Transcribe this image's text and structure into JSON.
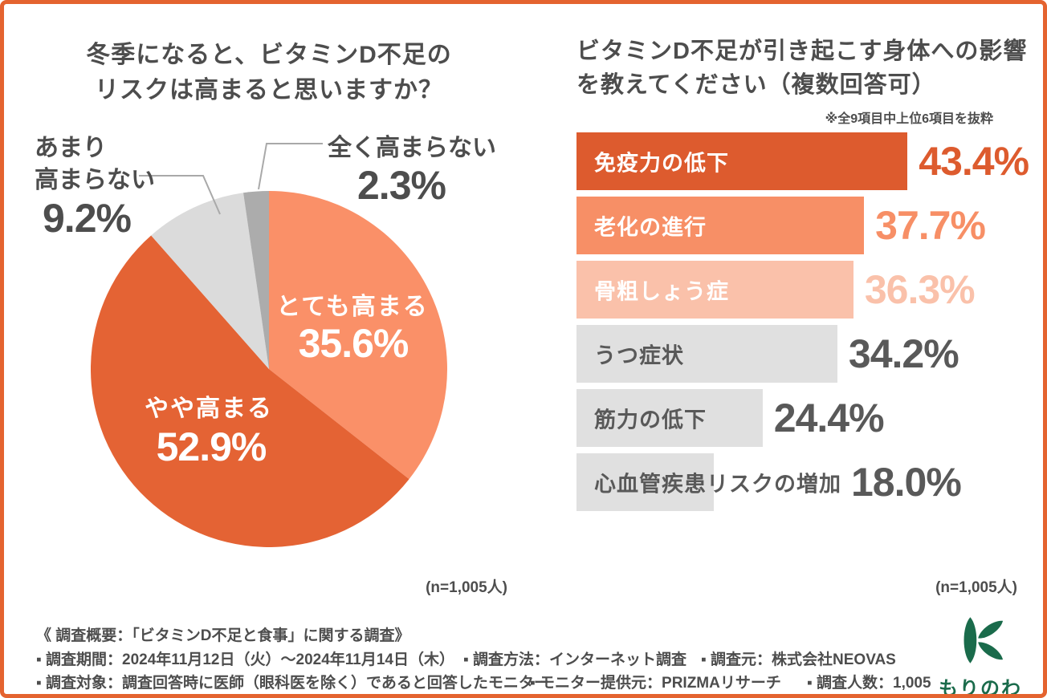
{
  "colors": {
    "card_border": "#E4632F",
    "title_text": "#4D4D4D",
    "gray_value_text": "#595959",
    "leader_line": "#A9A9A9",
    "logo_green": "#1A6B4B"
  },
  "chart_data": [
    {
      "type": "pie",
      "title": "冬季になると、ビタミンD不足のリスクは高まると思いますか？",
      "title_line1": "冬季になると、ビタミンD不足の",
      "title_line2": "リスクは高まると思いますか？",
      "n_label": "(n=1,005人)",
      "start_angle_deg": 0,
      "direction": "clockwise",
      "slices": [
        {
          "label": "とても高まる",
          "value": 35.6,
          "value_label": "35.6%",
          "color": "#FA9068",
          "label_placement": "inside"
        },
        {
          "label": "やや高まる",
          "value": 52.9,
          "value_label": "52.9%",
          "color": "#E46334",
          "label_placement": "inside"
        },
        {
          "label": "あまり高まらない",
          "label_line1": "あまり",
          "label_line2": "高まらない",
          "value": 9.2,
          "value_label": "9.2%",
          "color": "#DBDBDB",
          "label_placement": "outside-left"
        },
        {
          "label": "全く高まらない",
          "value": 2.3,
          "value_label": "2.3%",
          "color": "#ACACAC",
          "label_placement": "outside-top"
        }
      ]
    },
    {
      "type": "bar",
      "orientation": "horizontal",
      "title": "ビタミンD不足が引き起こす身体への影響を教えてください（複数回答可）",
      "title_line1": "ビタミンD不足が引き起こす身体への影響",
      "title_line2": "を教えてください（複数回答可）",
      "note": "※全9項目中上位6項目を抜粋",
      "n_label": "(n=1,005人)",
      "xlim": [
        0,
        50
      ],
      "bars": [
        {
          "label": "免疫力の低下",
          "value": 43.4,
          "value_label": "43.4%",
          "bar_color": "#DD5B2E",
          "label_color": "#FFFFFF",
          "value_color": "#DD5B2E"
        },
        {
          "label": "老化の進行",
          "value": 37.7,
          "value_label": "37.7%",
          "bar_color": "#F78F66",
          "label_color": "#FFFFFF",
          "value_color": "#F78F66"
        },
        {
          "label": "骨粗しょう症",
          "value": 36.3,
          "value_label": "36.3%",
          "bar_color": "#FAC1AA",
          "label_color": "#FFFFFF",
          "value_color": "#FAC1AA"
        },
        {
          "label": "うつ症状",
          "value": 34.2,
          "value_label": "34.2%",
          "bar_color": "#E0E0E0",
          "label_color": "#595959",
          "value_color": "#595959"
        },
        {
          "label": "筋力の低下",
          "value": 24.4,
          "value_label": "24.4%",
          "bar_color": "#E0E0E0",
          "label_color": "#595959",
          "value_color": "#595959"
        },
        {
          "label": "心血管疾患リスクの増加",
          "value": 18.0,
          "value_label": "18.0%",
          "bar_color": "#E0E0E0",
          "label_color": "#595959",
          "value_color": "#595959"
        }
      ]
    }
  ],
  "footer": {
    "line1": "《 調査概要：「ビタミンD不足と食事」に関する調査》",
    "line2": [
      "▪ 調査期間：2024年11月12日（火）～2024年11月14日（木）",
      "▪ 調査方法：インターネット調査",
      "▪ 調査元：株式会社NEOVAS"
    ],
    "line3": [
      "▪ 調査対象：調査回答時に医師（眼科医を除く）であると回答したモニター",
      "▪ モニター提供元：PRIZMAリサーチ",
      "▪ 調査人数：1,005"
    ]
  },
  "logo": {
    "name": "もりのわ"
  }
}
